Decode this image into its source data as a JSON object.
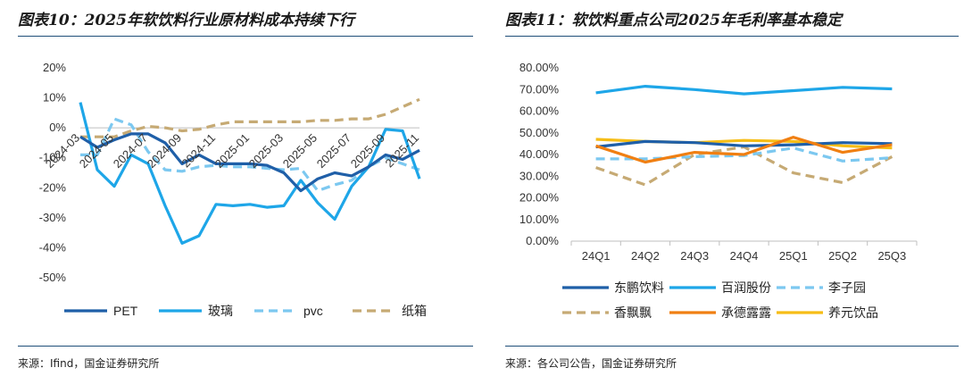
{
  "left": {
    "title": "图表10：2025年软饮料行业原材料成本持续下行",
    "source": "来源：Ifind，国金证券研究所"
  },
  "right": {
    "title": "图表11：软饮料重点公司2025年毛利率基本稳定",
    "source": "来源：各公司公告，国金证券研究所"
  },
  "colors": {
    "dark_blue": "#1f5fa8",
    "bright_blue": "#1ea6e8",
    "light_blue": "#7cc8f0",
    "tan": "#c6aa74",
    "orange": "#f07f12",
    "yellow": "#f6bd16",
    "rule": "#1f4e79"
  },
  "chart_data": [
    {
      "type": "line",
      "title": "图表10：2025年软饮料行业原材料成本持续下行",
      "xlabel": "",
      "ylabel": "",
      "ylim": [
        -0.5,
        0.2
      ],
      "y_tick_values": [
        0.2,
        0.1,
        0.0,
        -0.1,
        -0.2,
        -0.3,
        -0.4,
        -0.5
      ],
      "y_tick_labels": [
        "20%",
        "10%",
        "0%",
        "-10%",
        "-20%",
        "-30%",
        "-40%",
        "-50%"
      ],
      "x_tick_labels": [
        "2024-03",
        "2024-05",
        "2024-07",
        "2024-09",
        "2024-11",
        "2025-01",
        "2025-03",
        "2025-05",
        "2025-07",
        "2025-09",
        "2025-11"
      ],
      "x_tick_index": [
        0,
        2,
        4,
        6,
        8,
        10,
        12,
        14,
        16,
        18,
        20
      ],
      "n_points": 21,
      "legend_position": "bottom",
      "series": [
        {
          "name": "PET",
          "color": "#1f5fa8",
          "dash": "solid",
          "values": [
            -0.03,
            -0.065,
            -0.04,
            -0.02,
            -0.02,
            -0.05,
            -0.12,
            -0.09,
            -0.12,
            -0.12,
            -0.12,
            -0.125,
            -0.15,
            -0.21,
            -0.17,
            -0.15,
            -0.16,
            -0.13,
            -0.09,
            -0.105,
            -0.075
          ]
        },
        {
          "name": "玻璃",
          "color": "#1ea6e8",
          "dash": "solid",
          "values": [
            0.085,
            -0.14,
            -0.195,
            -0.09,
            -0.12,
            -0.26,
            -0.385,
            -0.36,
            -0.255,
            -0.26,
            -0.255,
            -0.265,
            -0.26,
            -0.175,
            -0.25,
            -0.305,
            -0.195,
            -0.13,
            -0.005,
            -0.01,
            -0.17
          ]
        },
        {
          "name": "pvc",
          "color": "#7cc8f0",
          "dash": "dashed",
          "values": [
            -0.09,
            -0.09,
            0.03,
            0.01,
            -0.08,
            -0.14,
            -0.145,
            -0.13,
            -0.125,
            -0.13,
            -0.13,
            -0.135,
            -0.14,
            -0.135,
            -0.21,
            -0.19,
            -0.175,
            -0.13,
            -0.1,
            -0.12,
            -0.14
          ]
        },
        {
          "name": "纸箱",
          "color": "#c6aa74",
          "dash": "dashed",
          "values": [
            -0.03,
            -0.03,
            -0.03,
            -0.01,
            0.005,
            0.0,
            -0.01,
            -0.005,
            0.01,
            0.02,
            0.02,
            0.02,
            0.02,
            0.02,
            0.025,
            0.025,
            0.03,
            0.03,
            0.045,
            0.07,
            0.095
          ]
        }
      ]
    },
    {
      "type": "line",
      "title": "图表11：软饮料重点公司2025年毛利率基本稳定",
      "xlabel": "",
      "ylabel": "",
      "ylim": [
        0.0,
        0.8
      ],
      "y_tick_values": [
        0.8,
        0.7,
        0.6,
        0.5,
        0.4,
        0.3,
        0.2,
        0.1,
        0.0
      ],
      "y_tick_labels": [
        "80.00%",
        "70.00%",
        "60.00%",
        "50.00%",
        "40.00%",
        "30.00%",
        "20.00%",
        "10.00%",
        "0.00%"
      ],
      "categories": [
        "24Q1",
        "24Q2",
        "24Q3",
        "24Q4",
        "25Q1",
        "25Q2",
        "25Q3"
      ],
      "legend_position": "bottom",
      "series": [
        {
          "name": "东鹏饮料",
          "color": "#1f5fa8",
          "dash": "solid",
          "values": [
            0.435,
            0.46,
            0.455,
            0.44,
            0.445,
            0.455,
            0.45
          ]
        },
        {
          "name": "百润股份",
          "color": "#1ea6e8",
          "dash": "solid",
          "values": [
            0.685,
            0.715,
            0.7,
            0.68,
            0.695,
            0.71,
            0.703
          ]
        },
        {
          "name": "李子园",
          "color": "#7cc8f0",
          "dash": "dashed",
          "values": [
            0.38,
            0.38,
            0.39,
            0.395,
            0.43,
            0.37,
            0.385
          ]
        },
        {
          "name": "香飘飘",
          "color": "#c6aa74",
          "dash": "dashed",
          "values": [
            0.34,
            0.26,
            0.4,
            0.435,
            0.315,
            0.27,
            0.39
          ]
        },
        {
          "name": "承德露露",
          "color": "#f07f12",
          "dash": "solid",
          "values": [
            0.44,
            0.365,
            0.41,
            0.4,
            0.48,
            0.41,
            0.445
          ]
        },
        {
          "name": "养元饮品",
          "color": "#f6bd16",
          "dash": "solid",
          "values": [
            0.47,
            0.46,
            0.455,
            0.465,
            0.46,
            0.44,
            0.43
          ]
        }
      ]
    }
  ]
}
